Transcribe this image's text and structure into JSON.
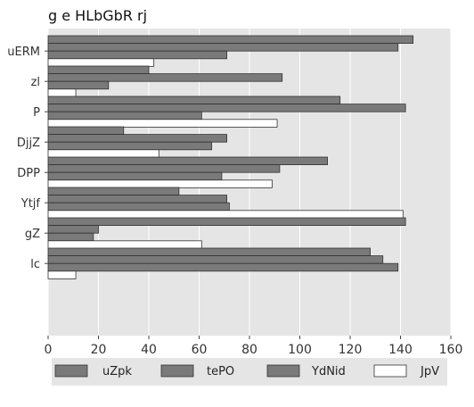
{
  "chart_data": {
    "type": "bar",
    "orientation": "horizontal",
    "title": "g e HLbGbR rj",
    "xlabel": "",
    "ylabel": "",
    "categories": [
      "uERM",
      "zl",
      "P",
      "DjjZ",
      "DPP",
      "Ytjf",
      "gZ",
      "lc"
    ],
    "xlim": [
      0,
      160
    ],
    "xticks": [
      0,
      20,
      40,
      60,
      80,
      100,
      120,
      140,
      160
    ],
    "grid": true,
    "legend_position": "bottom",
    "series": [
      {
        "name": "uZpk",
        "color": "#7a7a7a",
        "values": [
          145,
          40,
          116,
          30,
          111,
          52,
          142,
          128
        ]
      },
      {
        "name": "tePO",
        "color": "#7a7a7a",
        "values": [
          139,
          93,
          142,
          71,
          92,
          71,
          20,
          133
        ]
      },
      {
        "name": "YdNid",
        "color": "#7a7a7a",
        "values": [
          71,
          24,
          61,
          65,
          69,
          72,
          18,
          139
        ]
      },
      {
        "name": "JpV",
        "color": "#ffffff",
        "values": [
          42,
          11,
          91,
          44,
          89,
          141,
          61,
          11
        ]
      }
    ]
  }
}
